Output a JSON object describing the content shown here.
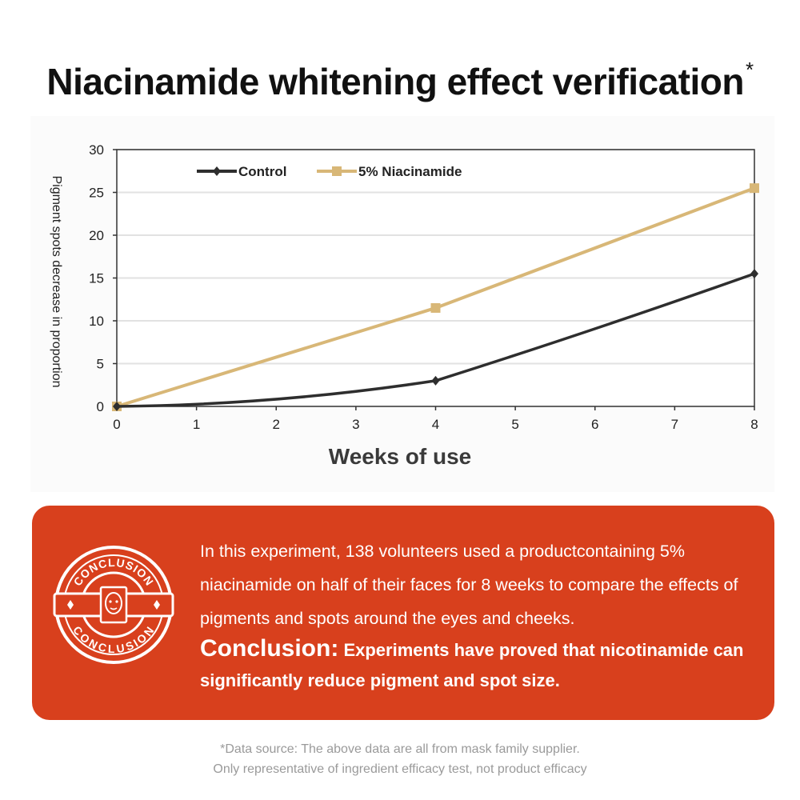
{
  "title": "Niacinamide whitening effect verification",
  "title_mark": "*",
  "chart_data": {
    "type": "line",
    "xlabel": "Weeks of use",
    "ylabel": "Pigment spots decrease in proportion",
    "xlim": [
      0,
      8
    ],
    "ylim": [
      0,
      30
    ],
    "xticks": [
      0,
      1,
      2,
      3,
      4,
      5,
      6,
      7,
      8
    ],
    "yticks": [
      0,
      5,
      10,
      15,
      20,
      25,
      30
    ],
    "grid": "horizontal",
    "legend_position": "top-left",
    "series": [
      {
        "name": "Control",
        "color": "#2e2e2e",
        "marker": "diamond",
        "x": [
          0,
          4,
          8
        ],
        "y": [
          0,
          3,
          15.5
        ]
      },
      {
        "name": "5% Niacinamide",
        "color": "#d8b777",
        "marker": "square",
        "x": [
          0,
          4,
          8
        ],
        "y": [
          0,
          11.5,
          25.5
        ]
      }
    ]
  },
  "conclusion": {
    "badge_top_text": "CONCLUSION",
    "badge_bottom_text": "CONCLUSION",
    "body": "In this experiment, 138 volunteers used a productcontaining 5% niacinamide on half of their faces for 8 weeks to compare the effects of pigments and spots around the eyes and cheeks.",
    "lead": "Conclusion:",
    "statement": "Experiments have proved that nicotinamide can significantly reduce pigment and spot size."
  },
  "footnote": {
    "line1": "*Data source: The above data are all from mask family supplier.",
    "line2": "Only representative of ingredient efficacy test, not product efficacy"
  },
  "colors": {
    "accent": "#d8401d",
    "control": "#2e2e2e",
    "niacinamide": "#d8b777"
  }
}
